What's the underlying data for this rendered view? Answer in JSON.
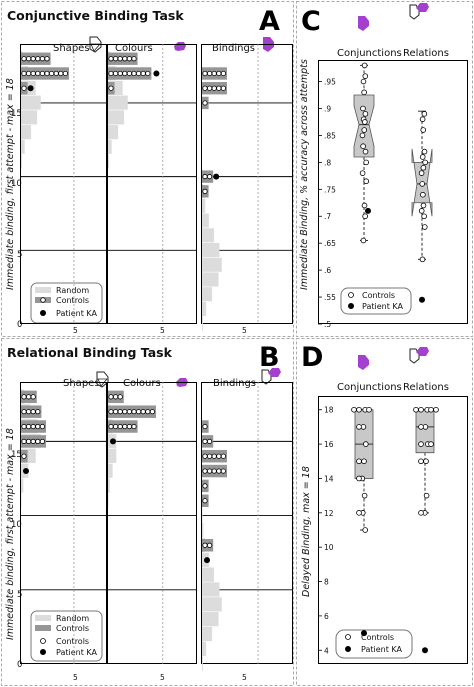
{
  "colors": {
    "purple": "#a340d0",
    "dark_bar": "#969696",
    "light_bar": "#dcdcdc",
    "dashed": "#9a9a9a"
  },
  "panels": {
    "A": {
      "letter": "A",
      "title": "Conjunctive Binding Task",
      "ylabel": "Immediate binding, first attempt - max = 18",
      "columns": [
        "Shapes",
        "Colours",
        "Bindings"
      ],
      "y_ticks": [
        "0",
        "5",
        "10",
        "15"
      ],
      "x_tick": "5",
      "legend": [
        "Random",
        "Controls",
        "Patient KA"
      ]
    },
    "B": {
      "letter": "B",
      "title": "Relational Binding Task",
      "ylabel": "Immediate binding, first attempt - max = 18",
      "columns": [
        "Shapes",
        "Colours",
        "Bindings"
      ],
      "y_ticks": [
        "0",
        "5",
        "10",
        "15"
      ],
      "x_tick": "5",
      "legend": [
        "Random",
        "Controls",
        "Controls",
        "Patient KA"
      ]
    },
    "C": {
      "letter": "C",
      "ylabel": "Immediate Binding, % accuracy across attempts",
      "categories": [
        "Conjunctions",
        "Relations"
      ],
      "y_ticks": [
        ".5",
        ".55",
        ".6",
        ".65",
        ".7",
        ".75",
        ".8",
        ".85",
        ".9",
        ".95"
      ],
      "legend": [
        "Controls",
        "Patient KA"
      ]
    },
    "D": {
      "letter": "D",
      "ylabel": "Delayed Binding, max = 18",
      "categories": [
        "Conjunctions",
        "Relations"
      ],
      "y_ticks": [
        "4",
        "6",
        "8",
        "10",
        "12",
        "14",
        "16",
        "18"
      ],
      "legend": [
        "Controls",
        "Patient KA"
      ]
    }
  },
  "chart_data": [
    {
      "type": "bar",
      "panel": "A",
      "layout": "horizontal histogram, 3 subplots",
      "ylim": [
        0,
        19
      ],
      "subplots": [
        {
          "name": "Shapes",
          "random": {
            "y": [
              0,
              1,
              2,
              3,
              4,
              5,
              6,
              7,
              8,
              9,
              10,
              11,
              12,
              13,
              14,
              15,
              16,
              17,
              18
            ],
            "count": [
              0,
              0,
              0,
              0,
              0,
              0,
              0,
              0,
              0,
              0,
              0,
              0.2,
              0.8,
              2.2,
              3.5,
              4.3,
              3.2,
              1.6,
              0.4
            ]
          },
          "controls": {
            "y": [
              16,
              17,
              18
            ],
            "count": [
              1,
              10,
              6
            ]
          },
          "patient": 16
        },
        {
          "name": "Colours",
          "random": {
            "y": [
              0,
              1,
              2,
              3,
              4,
              5,
              6,
              7,
              8,
              9,
              10,
              11,
              12,
              13,
              14,
              15,
              16,
              17,
              18
            ],
            "count": [
              0,
              0,
              0,
              0,
              0,
              0,
              0,
              0,
              0,
              0,
              0,
              0.2,
              0.8,
              2.2,
              3.5,
              4.3,
              3.2,
              1.6,
              0.4
            ]
          },
          "controls": {
            "y": [
              16,
              17,
              18
            ],
            "count": [
              1,
              9,
              6
            ]
          },
          "patient": 17
        },
        {
          "name": "Bindings",
          "random": {
            "y": [
              0,
              1,
              2,
              3,
              4,
              5,
              6,
              7,
              8,
              9,
              10,
              11,
              12,
              13
            ],
            "count": [
              0.2,
              0.9,
              2.2,
              3.6,
              4.3,
              3.8,
              2.6,
              1.5,
              0.7,
              0.3,
              0.1,
              0,
              0,
              0
            ]
          },
          "controls": {
            "y": [
              9,
              10,
              15,
              16,
              17
            ],
            "count": [
              1,
              2,
              1,
              5,
              5
            ]
          },
          "patient": 10
        }
      ]
    },
    {
      "type": "bar",
      "panel": "B",
      "layout": "horizontal histogram, 3 subplots",
      "ylim": [
        0,
        19
      ],
      "subplots": [
        {
          "name": "Shapes",
          "random": {
            "y": [
              0,
              1,
              2,
              3,
              4,
              5,
              6,
              7,
              8,
              9,
              10,
              11,
              12,
              13,
              14,
              15,
              16,
              17,
              18
            ],
            "count": [
              0,
              0,
              0,
              0,
              0,
              0,
              0,
              0,
              0,
              0,
              0,
              0.1,
              0.5,
              1.6,
              3.2,
              4.3,
              3.6,
              2,
              0.6
            ]
          },
          "controls": {
            "y": [
              14,
              15,
              16,
              17,
              18
            ],
            "count": [
              1,
              5,
              5,
              4,
              3
            ]
          },
          "patient": 13
        },
        {
          "name": "Colours",
          "random": {
            "y": [
              0,
              1,
              2,
              3,
              4,
              5,
              6,
              7,
              8,
              9,
              10,
              11,
              12,
              13,
              14,
              15,
              16,
              17,
              18
            ],
            "count": [
              0,
              0,
              0,
              0,
              0,
              0,
              0,
              0,
              0,
              0,
              0,
              0.1,
              0.4,
              1,
              1.8,
              1.8,
              1,
              0.4,
              0.1
            ]
          },
          "controls": {
            "y": [
              15,
              16,
              17,
              18
            ],
            "count": [
              0,
              6,
              10,
              3
            ]
          },
          "patient": 15
        },
        {
          "name": "Bindings",
          "random": {
            "y": [
              0,
              1,
              2,
              3,
              4,
              5,
              6,
              7,
              8,
              9,
              10,
              11,
              12,
              13
            ],
            "count": [
              0.2,
              0.9,
              2.2,
              3.6,
              4.3,
              3.8,
              2.6,
              1.5,
              0.7,
              0.3,
              0.1,
              0,
              0,
              0
            ]
          },
          "controls": {
            "y": [
              8,
              11,
              12,
              13,
              14,
              15,
              16
            ],
            "count": [
              2,
              1,
              1,
              5,
              5,
              2,
              1
            ]
          },
          "patient": 7
        }
      ]
    },
    {
      "type": "scatter",
      "panel": "C",
      "subtype": "boxplot with points",
      "ylim": [
        0.5,
        0.99
      ],
      "categories": [
        "Conjunctions",
        "Relations"
      ],
      "boxes": [
        {
          "whisker_low": 0.655,
          "q1": 0.81,
          "median": 0.87,
          "q3": 0.925,
          "whisker_high": 0.98,
          "notch": [
            0.83,
            0.905
          ]
        },
        {
          "whisker_low": 0.62,
          "q1": 0.725,
          "median": 0.76,
          "q3": 0.8,
          "whisker_high": 0.895,
          "notch": [
            0.7,
            0.825
          ]
        }
      ],
      "controls": [
        [
          0.98,
          0.96,
          0.95,
          0.93,
          0.9,
          0.89,
          0.88,
          0.875,
          0.86,
          0.85,
          0.83,
          0.82,
          0.8,
          0.78,
          0.765,
          0.72,
          0.7,
          0.655
        ],
        [
          0.89,
          0.88,
          0.86,
          0.82,
          0.81,
          0.8,
          0.79,
          0.78,
          0.76,
          0.74,
          0.72,
          0.71,
          0.7,
          0.68,
          0.62
        ]
      ],
      "patient": [
        0.71,
        0.545
      ]
    },
    {
      "type": "scatter",
      "panel": "D",
      "subtype": "boxplot with points",
      "ylim": [
        3.2,
        18.8
      ],
      "categories": [
        "Conjunctions",
        "Relations"
      ],
      "boxes": [
        {
          "whisker_low": 11,
          "q1": 14,
          "median": 16,
          "q3": 18,
          "whisker_high": 18
        },
        {
          "whisker_low": 12,
          "q1": 15.5,
          "median": 17,
          "q3": 18,
          "whisker_high": 18
        }
      ],
      "controls": [
        [
          18,
          18,
          18,
          18,
          17,
          17,
          16,
          15,
          15,
          14,
          14,
          13,
          12,
          12,
          11
        ],
        [
          18,
          18,
          18,
          18,
          18,
          17,
          17,
          16,
          16,
          16,
          15,
          15,
          13,
          12,
          12
        ]
      ],
      "patient": [
        5,
        4
      ]
    }
  ]
}
